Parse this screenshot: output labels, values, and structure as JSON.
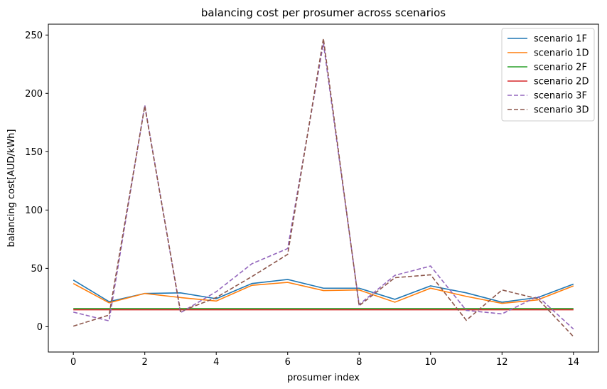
{
  "chart_data": {
    "type": "line",
    "title": "balancing cost per prosumer across scenarios",
    "xlabel": "prosumer index",
    "ylabel": "balancing cost[AUD/kWh]",
    "xlim": [
      -0.7,
      14.7
    ],
    "ylim": [
      -21.7,
      259.3
    ],
    "x_ticks": [
      0,
      2,
      4,
      6,
      8,
      10,
      12,
      14
    ],
    "y_ticks": [
      0,
      50,
      100,
      150,
      200,
      250
    ],
    "legend_position": "top-right",
    "x": [
      0,
      1,
      2,
      3,
      4,
      5,
      6,
      7,
      8,
      9,
      10,
      11,
      12,
      13,
      14
    ],
    "series": [
      {
        "name": "scenario 1F",
        "color": "#1f77b4",
        "dash": "solid",
        "values": [
          40,
          21.5,
          28.5,
          29,
          24,
          37,
          40.5,
          33,
          33,
          23.5,
          35,
          29,
          21,
          25,
          36.5
        ]
      },
      {
        "name": "scenario 1D",
        "color": "#ff7f0e",
        "dash": "solid",
        "values": [
          37,
          20.5,
          28.5,
          25,
          22,
          35.5,
          38,
          31,
          31.5,
          21,
          33,
          26,
          20,
          23,
          35
        ]
      },
      {
        "name": "scenario 2F",
        "color": "#2ca02c",
        "dash": "solid",
        "values": [
          15.5,
          15.5,
          15.5,
          15.5,
          15.5,
          15.5,
          15.5,
          15.5,
          15.5,
          15.5,
          15.5,
          15.5,
          15.5,
          15.5,
          15.5
        ]
      },
      {
        "name": "scenario 2D",
        "color": "#d62728",
        "dash": "solid",
        "values": [
          14.5,
          14.5,
          14.5,
          14.5,
          14.5,
          14.5,
          14.5,
          14.5,
          14.5,
          14.5,
          14.5,
          14.5,
          14.5,
          14.5,
          14.5
        ]
      },
      {
        "name": "scenario 3F",
        "color": "#9467bd",
        "dash": "dashed",
        "values": [
          12.5,
          5,
          190,
          12,
          30,
          54,
          67,
          243,
          19,
          44,
          52,
          14,
          11,
          26,
          -2
        ]
      },
      {
        "name": "scenario 3D",
        "color": "#8c564b",
        "dash": "dashed",
        "values": [
          0.5,
          10,
          189,
          13,
          25,
          43,
          62,
          247,
          18,
          42,
          44.5,
          5.5,
          31.5,
          24,
          -8.5
        ]
      }
    ]
  }
}
